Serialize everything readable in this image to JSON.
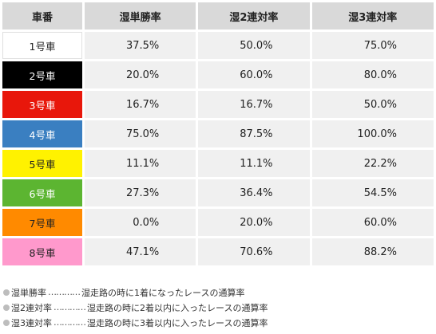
{
  "table": {
    "headers": [
      "車番",
      "湿単勝率",
      "湿2連対率",
      "湿3連対率"
    ],
    "rows": [
      {
        "car": "1号車",
        "bg": "#ffffff",
        "fg": "#222222",
        "win": "37.5%",
        "quinella": "50.0%",
        "trio": "75.0%"
      },
      {
        "car": "2号車",
        "bg": "#000000",
        "fg": "#ffffff",
        "win": "20.0%",
        "quinella": "60.0%",
        "trio": "80.0%"
      },
      {
        "car": "3号車",
        "bg": "#e8170b",
        "fg": "#ffffff",
        "win": "16.7%",
        "quinella": "16.7%",
        "trio": "50.0%"
      },
      {
        "car": "4号車",
        "bg": "#3a7fc1",
        "fg": "#ffffff",
        "win": "75.0%",
        "quinella": "87.5%",
        "trio": "100.0%"
      },
      {
        "car": "5号車",
        "bg": "#fff200",
        "fg": "#222222",
        "win": "11.1%",
        "quinella": "11.1%",
        "trio": "22.2%"
      },
      {
        "car": "6号車",
        "bg": "#5cb531",
        "fg": "#ffffff",
        "win": "27.3%",
        "quinella": "36.4%",
        "trio": "54.5%"
      },
      {
        "car": "7号車",
        "bg": "#ff8a00",
        "fg": "#222222",
        "win": "0.0%",
        "quinella": "20.0%",
        "trio": "60.0%"
      },
      {
        "car": "8号車",
        "bg": "#ff99cc",
        "fg": "#222222",
        "win": "47.1%",
        "quinella": "70.6%",
        "trio": "88.2%"
      }
    ]
  },
  "legend": [
    {
      "term": "湿単勝率",
      "dots": "…………",
      "desc": "湿走路の時に1着になったレースの通算率"
    },
    {
      "term": "湿2連対率",
      "dots": "…………",
      "desc": "湿走路の時に2着以内に入ったレースの通算率"
    },
    {
      "term": "湿3連対率",
      "dots": "…………",
      "desc": "湿走路の時に3着以内に入ったレースの通算率"
    }
  ]
}
